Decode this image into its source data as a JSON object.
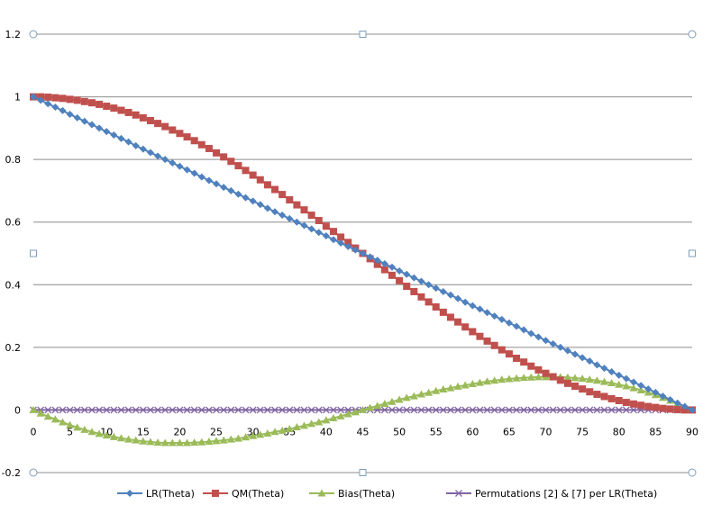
{
  "chart_data": {
    "type": "line",
    "title": "",
    "xlabel": "",
    "ylabel": "",
    "xlim": [
      0,
      90
    ],
    "ylim": [
      -0.2,
      1.2
    ],
    "x_ticks": [
      "0",
      "5",
      "10",
      "15",
      "20",
      "25",
      "30",
      "35",
      "40",
      "45",
      "50",
      "55",
      "60",
      "65",
      "70",
      "75",
      "80",
      "85",
      "90"
    ],
    "y_ticks": [
      "1.2",
      "1",
      "0.8",
      "0.6",
      "0.4",
      "0.2",
      "0",
      "-0.2"
    ],
    "grid": "horizontal",
    "legend_position": "bottom",
    "x": [
      0,
      1,
      2,
      3,
      4,
      5,
      6,
      7,
      8,
      9,
      10,
      11,
      12,
      13,
      14,
      15,
      16,
      17,
      18,
      19,
      20,
      21,
      22,
      23,
      24,
      25,
      26,
      27,
      28,
      29,
      30,
      31,
      32,
      33,
      34,
      35,
      36,
      37,
      38,
      39,
      40,
      41,
      42,
      43,
      44,
      45,
      46,
      47,
      48,
      49,
      50,
      51,
      52,
      53,
      54,
      55,
      56,
      57,
      58,
      59,
      60,
      61,
      62,
      63,
      64,
      65,
      66,
      67,
      68,
      69,
      70,
      71,
      72,
      73,
      74,
      75,
      76,
      77,
      78,
      79,
      80,
      81,
      82,
      83,
      84,
      85,
      86,
      87,
      88,
      89,
      90
    ],
    "series": [
      {
        "name": "LR(Theta)",
        "color": "#4F81BD",
        "marker": "diamond",
        "values": [
          1,
          0.989,
          0.978,
          0.967,
          0.956,
          0.944,
          0.933,
          0.922,
          0.911,
          0.9,
          0.889,
          0.878,
          0.867,
          0.856,
          0.844,
          0.833,
          0.822,
          0.811,
          0.8,
          0.789,
          0.778,
          0.767,
          0.756,
          0.744,
          0.733,
          0.722,
          0.711,
          0.7,
          0.689,
          0.678,
          0.667,
          0.656,
          0.644,
          0.633,
          0.622,
          0.611,
          0.6,
          0.589,
          0.578,
          0.567,
          0.556,
          0.544,
          0.533,
          0.522,
          0.511,
          0.5,
          0.489,
          0.478,
          0.467,
          0.456,
          0.444,
          0.433,
          0.422,
          0.411,
          0.4,
          0.389,
          0.378,
          0.367,
          0.356,
          0.344,
          0.333,
          0.322,
          0.311,
          0.3,
          0.289,
          0.278,
          0.267,
          0.256,
          0.244,
          0.233,
          0.222,
          0.211,
          0.2,
          0.189,
          0.178,
          0.167,
          0.156,
          0.144,
          0.133,
          0.122,
          0.111,
          0.1,
          0.089,
          0.078,
          0.067,
          0.056,
          0.044,
          0.033,
          0.022,
          0.011,
          0
        ]
      },
      {
        "name": "QM(Theta)",
        "color": "#C0504D",
        "marker": "square",
        "values": [
          1,
          1,
          0.999,
          0.997,
          0.995,
          0.992,
          0.989,
          0.985,
          0.981,
          0.976,
          0.97,
          0.964,
          0.957,
          0.95,
          0.942,
          0.933,
          0.924,
          0.915,
          0.905,
          0.894,
          0.883,
          0.872,
          0.86,
          0.847,
          0.835,
          0.821,
          0.808,
          0.794,
          0.78,
          0.765,
          0.75,
          0.735,
          0.719,
          0.704,
          0.688,
          0.671,
          0.655,
          0.639,
          0.622,
          0.605,
          0.587,
          0.57,
          0.552,
          0.535,
          0.517,
          0.5,
          0.483,
          0.465,
          0.448,
          0.43,
          0.413,
          0.395,
          0.378,
          0.361,
          0.345,
          0.329,
          0.312,
          0.296,
          0.281,
          0.265,
          0.25,
          0.235,
          0.22,
          0.206,
          0.192,
          0.179,
          0.165,
          0.153,
          0.14,
          0.128,
          0.117,
          0.106,
          0.095,
          0.085,
          0.076,
          0.067,
          0.058,
          0.05,
          0.043,
          0.036,
          0.03,
          0.024,
          0.019,
          0.015,
          0.011,
          0.008,
          0.005,
          0.003,
          0.001,
          0,
          0
        ]
      },
      {
        "name": "Bias(Theta)",
        "color": "#9BBB59",
        "marker": "triangle",
        "values": [
          0,
          -0.011,
          -0.021,
          -0.03,
          -0.039,
          -0.048,
          -0.056,
          -0.063,
          -0.07,
          -0.076,
          -0.081,
          -0.086,
          -0.09,
          -0.094,
          -0.097,
          -0.1,
          -0.102,
          -0.104,
          -0.105,
          -0.105,
          -0.105,
          -0.105,
          -0.104,
          -0.103,
          -0.101,
          -0.099,
          -0.097,
          -0.094,
          -0.091,
          -0.087,
          -0.083,
          -0.079,
          -0.075,
          -0.07,
          -0.066,
          -0.061,
          -0.055,
          -0.05,
          -0.044,
          -0.039,
          -0.033,
          -0.026,
          -0.02,
          -0.013,
          -0.007,
          0,
          0.007,
          0.013,
          0.02,
          0.026,
          0.033,
          0.039,
          0.044,
          0.05,
          0.055,
          0.061,
          0.066,
          0.07,
          0.075,
          0.079,
          0.083,
          0.087,
          0.091,
          0.094,
          0.097,
          0.099,
          0.101,
          0.103,
          0.104,
          0.105,
          0.105,
          0.105,
          0.105,
          0.104,
          0.102,
          0.1,
          0.097,
          0.094,
          0.09,
          0.086,
          0.081,
          0.076,
          0.07,
          0.063,
          0.056,
          0.048,
          0.039,
          0.03,
          0.021,
          0.011,
          0
        ]
      },
      {
        "name": "Permutations [2] & [7] per LR(Theta)",
        "color": "#8064A2",
        "marker": "x",
        "values": [
          0,
          0,
          0,
          0,
          0,
          0,
          0,
          0,
          0,
          0,
          0,
          0,
          0,
          0,
          0,
          0,
          0,
          0,
          0,
          0,
          0,
          0,
          0,
          0,
          0,
          0,
          0,
          0,
          0,
          0,
          0,
          0,
          0,
          0,
          0,
          0,
          0,
          0,
          0,
          0,
          0,
          0,
          0,
          0,
          0,
          0,
          0,
          0,
          0,
          0,
          0,
          0,
          0,
          0,
          0,
          0,
          0,
          0,
          0,
          0,
          0,
          0,
          0,
          0,
          0,
          0,
          0,
          0,
          0,
          0,
          0,
          0,
          0,
          0,
          0,
          0,
          0,
          0,
          0,
          0,
          0,
          0,
          0,
          0,
          0,
          0,
          0,
          0,
          0,
          0,
          0
        ]
      }
    ]
  }
}
